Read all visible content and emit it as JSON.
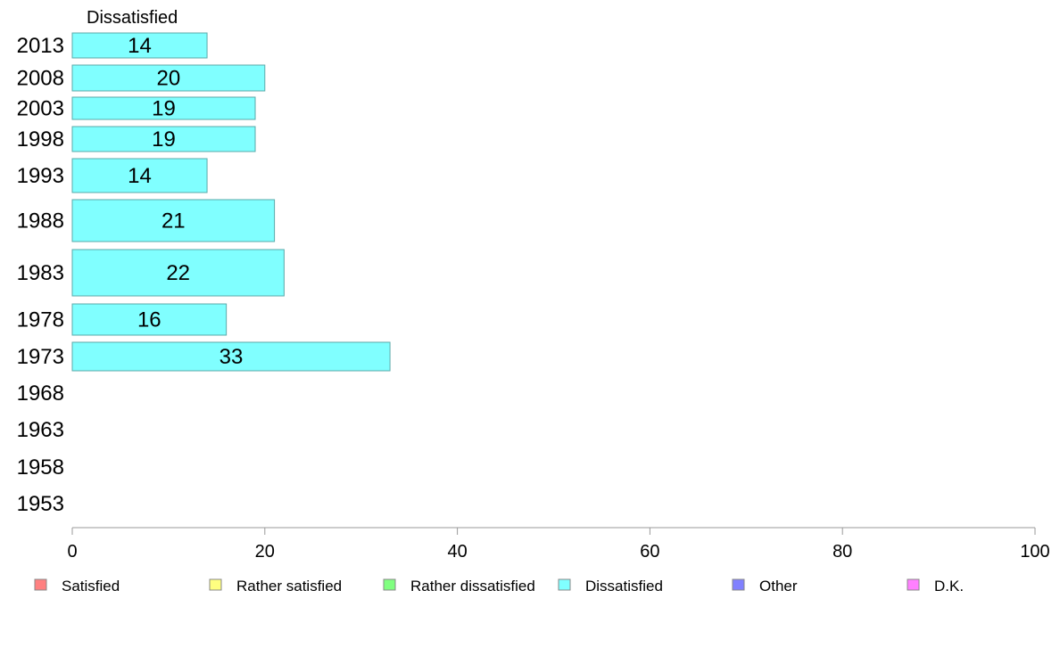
{
  "chart_data": {
    "type": "bar",
    "orientation": "horizontal",
    "title": "Dissatisfied",
    "categories": [
      "2013",
      "2008",
      "2003",
      "1998",
      "1993",
      "1988",
      "1983",
      "1978",
      "1973",
      "1968",
      "1963",
      "1958",
      "1953"
    ],
    "series": [
      {
        "name": "Dissatisfied",
        "color": "#80ffff",
        "values": [
          14,
          20,
          19,
          19,
          14,
          21,
          22,
          16,
          33,
          null,
          null,
          null,
          null
        ],
        "labels": [
          "14",
          "20",
          "19",
          "19",
          "14",
          "21",
          "22",
          "16",
          "33",
          "",
          "",
          "",
          ""
        ]
      }
    ],
    "xlim": [
      0,
      100
    ],
    "xticks": [
      0,
      20,
      40,
      60,
      80,
      100
    ],
    "grid": false,
    "legend": {
      "placement": "bottom",
      "entries": [
        {
          "label": "Satisfied",
          "color": "#ff8080"
        },
        {
          "label": "Rather satisfied",
          "color": "#ffff80"
        },
        {
          "label": "Rather dissatisfied",
          "color": "#80ff80"
        },
        {
          "label": "Dissatisfied",
          "color": "#80ffff"
        },
        {
          "label": "Other",
          "color": "#8080ff"
        },
        {
          "label": "D.K.",
          "color": "#ff80ff"
        }
      ]
    }
  }
}
